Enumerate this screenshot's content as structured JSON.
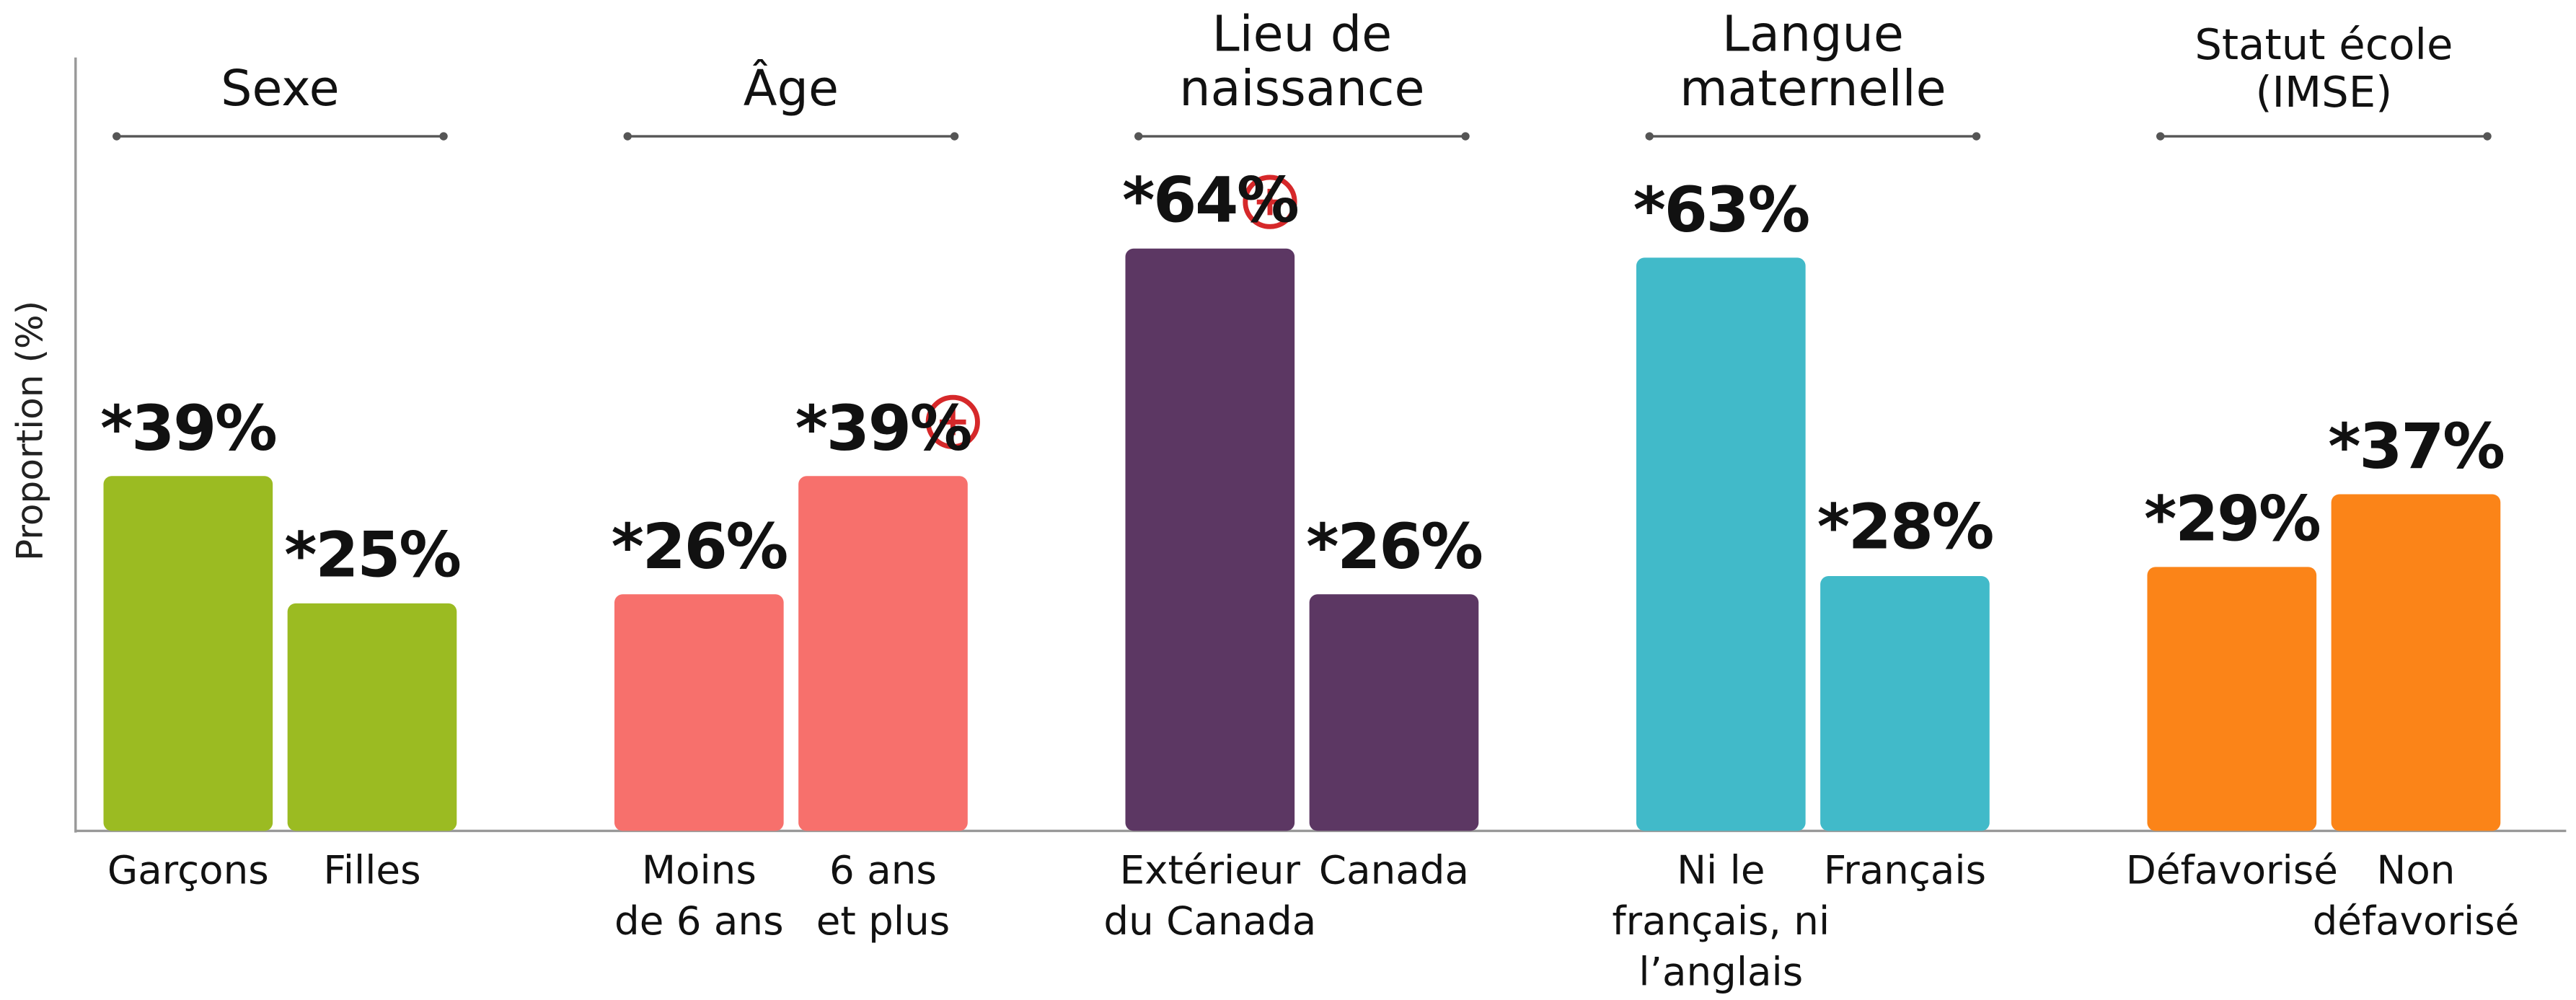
{
  "chart_data": {
    "type": "bar",
    "y_label": "Proportion (%)",
    "ylim": [
      0,
      85
    ],
    "groups": [
      {
        "name": "Sexe",
        "color": "#9bbb22",
        "categories": [
          "Garçons",
          "Filles"
        ],
        "values": [
          39,
          25
        ],
        "value_labels": [
          "*39%",
          "*25%"
        ]
      },
      {
        "name": "Âge",
        "color": "#f7706c",
        "categories": [
          "Moins\nde 6 ans",
          "6 ans\net plus"
        ],
        "values": [
          26,
          39
        ],
        "value_labels": [
          "*26%",
          "*39%"
        ]
      },
      {
        "name": "Lieu de\nnaissance",
        "color": "#5c3763",
        "categories": [
          "Extérieur\ndu Canada",
          "Canada"
        ],
        "values": [
          64,
          26
        ],
        "value_labels": [
          "*64%",
          "*26%"
        ]
      },
      {
        "name": "Langue\nmaternelle",
        "color": "#41bac9",
        "categories": [
          "Ni le\nfrançais, ni\nl’anglais",
          "Français"
        ],
        "values": [
          63,
          28
        ],
        "value_labels": [
          "*63%",
          "*28%"
        ]
      },
      {
        "name": "Statut école\n(IMSE)",
        "color": "#fb8418",
        "categories": [
          "Défavorisé",
          "Non\ndéfavorisé"
        ],
        "values": [
          29,
          37
        ],
        "value_labels": [
          "*29%",
          "*37%"
        ]
      }
    ]
  }
}
